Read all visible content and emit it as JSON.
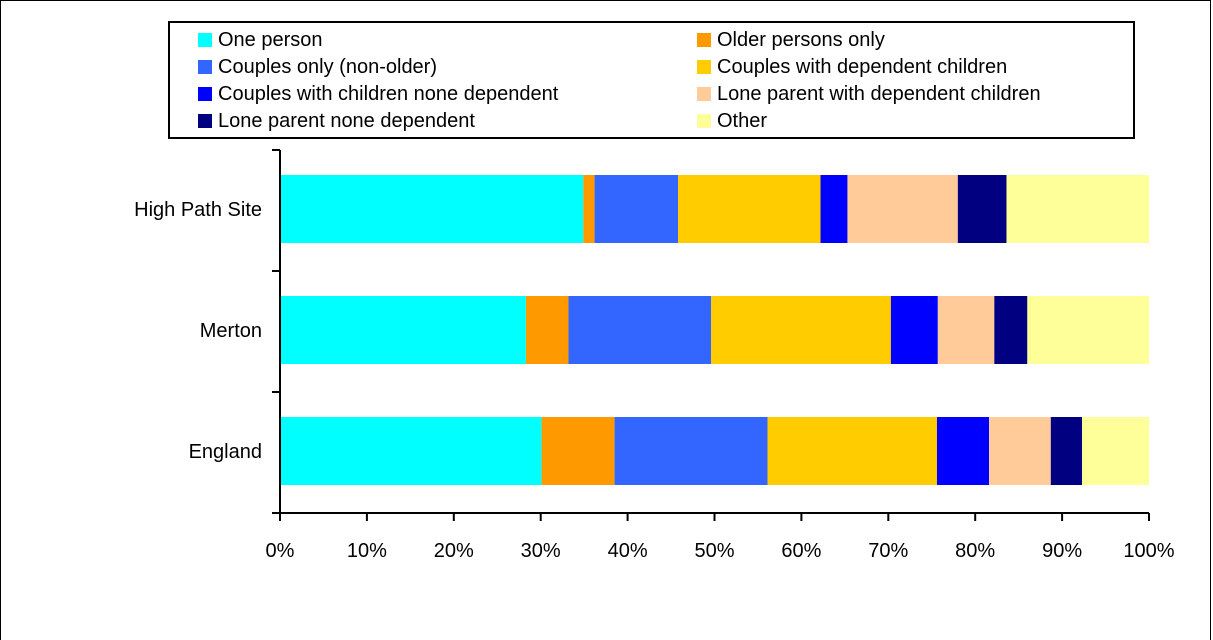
{
  "chart_data": {
    "type": "bar",
    "orientation": "horizontal",
    "stacked_percent": true,
    "categories": [
      "High Path Site",
      "Merton",
      "England"
    ],
    "series": [
      {
        "name": "One person",
        "color": "#00ffff",
        "values": [
          34.9,
          28.3,
          30.1
        ]
      },
      {
        "name": "Older persons only",
        "color": "#ff9900",
        "values": [
          1.3,
          4.9,
          8.4
        ]
      },
      {
        "name": "Couples only (non-older)",
        "color": "#3366ff",
        "values": [
          9.6,
          16.4,
          17.6
        ]
      },
      {
        "name": "Couples with dependent children",
        "color": "#ffcc00",
        "values": [
          16.4,
          20.7,
          19.5
        ]
      },
      {
        "name": "Couples with children none dependent",
        "color": "#0000ff",
        "values": [
          3.1,
          5.4,
          6.0
        ]
      },
      {
        "name": "Lone parent with dependent children",
        "color": "#ffcc99",
        "values": [
          12.7,
          6.5,
          7.1
        ]
      },
      {
        "name": "Lone parent none dependent",
        "color": "#000080",
        "values": [
          5.6,
          3.8,
          3.6
        ]
      },
      {
        "name": "Other",
        "color": "#ffff99",
        "values": [
          16.4,
          14.0,
          7.7
        ]
      }
    ],
    "xticks": [
      "0%",
      "10%",
      "20%",
      "30%",
      "40%",
      "50%",
      "60%",
      "70%",
      "80%",
      "90%",
      "100%"
    ],
    "xlim": [
      0,
      100
    ],
    "grid": false,
    "legend_position": "top",
    "title": "",
    "xlabel": "",
    "ylabel": ""
  }
}
